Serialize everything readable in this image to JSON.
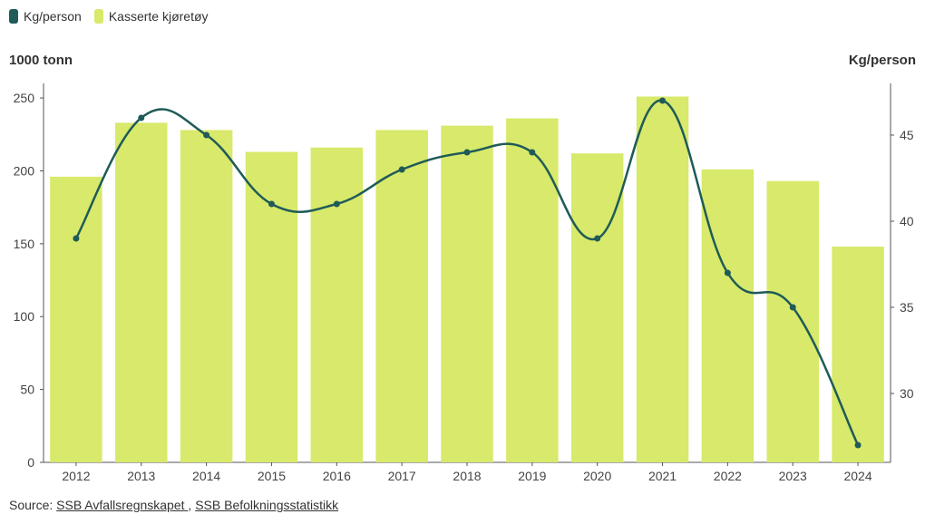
{
  "legend": {
    "line_label": "Kg/person",
    "bar_label": "Kasserte kjøretøy"
  },
  "axes": {
    "left_title": "1000 tonn",
    "right_title": "Kg/person"
  },
  "source": {
    "prefix": "Source:",
    "link1": "SSB Avfallsregnskapet ",
    "separator": ",",
    "link2": "SSB Befolkningsstatistikk"
  },
  "colors": {
    "bar": "#d8e96b",
    "line": "#1f5b57"
  },
  "chart_data": {
    "type": "bar",
    "categories": [
      "2012",
      "2013",
      "2014",
      "2015",
      "2016",
      "2017",
      "2018",
      "2019",
      "2020",
      "2021",
      "2022",
      "2023",
      "2024"
    ],
    "series": [
      {
        "name": "Kasserte kjøretøy",
        "type": "bar",
        "axis": "left",
        "values": [
          196,
          233,
          228,
          213,
          216,
          228,
          231,
          236,
          212,
          251,
          201,
          193,
          148
        ]
      },
      {
        "name": "Kg/person",
        "type": "line",
        "axis": "right",
        "values": [
          39,
          46,
          45,
          41,
          41,
          43,
          44,
          44,
          39,
          47,
          37,
          35,
          27
        ]
      }
    ],
    "left_axis": {
      "ylim": [
        0,
        260
      ],
      "ticks": [
        0,
        50,
        100,
        150,
        200,
        250
      ]
    },
    "right_axis": {
      "ylim": [
        26,
        48
      ],
      "ticks": [
        30,
        35,
        40,
        45
      ]
    },
    "grid": false,
    "legend_position": "top-left"
  }
}
